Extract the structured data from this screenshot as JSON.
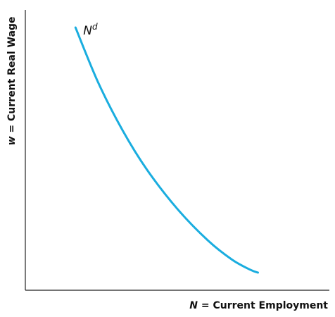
{
  "chart_data": {
    "type": "line",
    "title": "",
    "xlabel": {
      "var": "N",
      "rest": " = Current Employment"
    },
    "ylabel": {
      "var": "w",
      "rest": " = Current Real Wage"
    },
    "xlim": [
      0,
      100
    ],
    "ylim": [
      0,
      100
    ],
    "grid": false,
    "legend": "none",
    "show_ticks": false,
    "series": [
      {
        "label": {
          "base": "N",
          "sup": "d"
        },
        "color": "#1AADDF",
        "x": [
          16.5,
          24,
          32,
          40,
          50,
          60,
          68,
          74,
          76.5
        ],
        "y": [
          93.7,
          74,
          57,
          43,
          29,
          17.8,
          10.9,
          7.3,
          6.3
        ]
      }
    ]
  }
}
